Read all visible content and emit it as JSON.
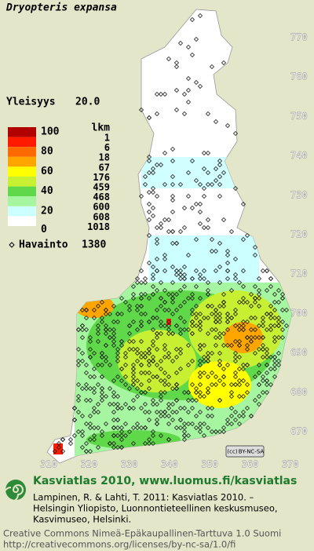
{
  "title": "Dryopteris expansa",
  "frequency": {
    "label": "Yleisyys",
    "value": "20.0"
  },
  "legend": {
    "scale_labels": [
      "100",
      "80",
      "60",
      "40",
      "20",
      "0"
    ],
    "count_header": "lkm",
    "counts": [
      "1",
      "6",
      "18",
      "67",
      "176",
      "459",
      "468",
      "600",
      "608",
      "1018"
    ],
    "colors": [
      "#b00000",
      "#ff1a00",
      "#ff6a00",
      "#ffa500",
      "#ffff00",
      "#c8f032",
      "#5fd84a",
      "#a6f5a0",
      "#ccffff",
      "#ffffff"
    ]
  },
  "observations": {
    "label": "Havainto",
    "value": "1380"
  },
  "map": {
    "y_labels": [
      770,
      760,
      750,
      740,
      730,
      720,
      710,
      700,
      690,
      680,
      670
    ],
    "x_labels": [
      310,
      320,
      330,
      340,
      350,
      360,
      370
    ]
  },
  "license_badge": "BY-NC-SA",
  "footer": {
    "headline": "Kasviatlas 2010, www.luomus.fi/kasviatlas",
    "citation": [
      "Lampinen, R. & Lahti, T. 2011: Kasviatlas 2010. –",
      "Helsingin Yliopisto, Luonnontieteellinen keskusmuseo,",
      "Kasvimuseo, Helsinki."
    ],
    "license": [
      "Creative Commons Nimeä-Epäkaupallinen-Tarttuva 1.0 Suomi",
      "http://creativecommons.org/licenses/by-nc-sa/1.0/fi"
    ]
  }
}
